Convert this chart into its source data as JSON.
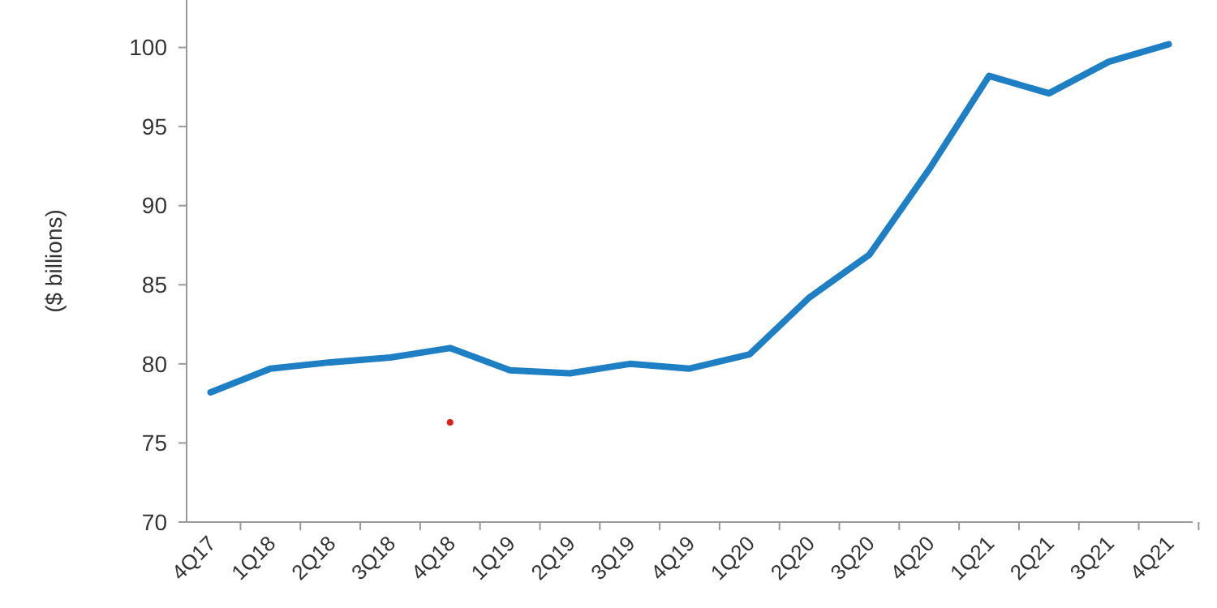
{
  "chart_data": {
    "type": "line",
    "ylabel": "($ billions)",
    "categories": [
      "4Q17",
      "1Q18",
      "2Q18",
      "3Q18",
      "4Q18",
      "1Q19",
      "2Q19",
      "3Q19",
      "4Q19",
      "1Q20",
      "2Q20",
      "3Q20",
      "4Q20",
      "1Q21",
      "2Q21",
      "3Q21",
      "4Q21"
    ],
    "series": [
      {
        "color": "#1f7fc4",
        "values": [
          78.2,
          79.7,
          80.1,
          80.4,
          81.0,
          79.6,
          79.4,
          80.0,
          79.7,
          80.6,
          84.2,
          86.9,
          92.3,
          98.2,
          97.1,
          99.1,
          100.2
        ]
      },
      {
        "type": "scatter",
        "marker": "circle",
        "color": "#e02020",
        "x": [
          "4Q18"
        ],
        "values": [
          76.3
        ]
      }
    ],
    "ylim": [
      70,
      103
    ],
    "yticks": [
      70,
      75,
      80,
      85,
      90,
      95,
      100
    ],
    "grid": false,
    "marker": "none",
    "line_style": "solid"
  }
}
